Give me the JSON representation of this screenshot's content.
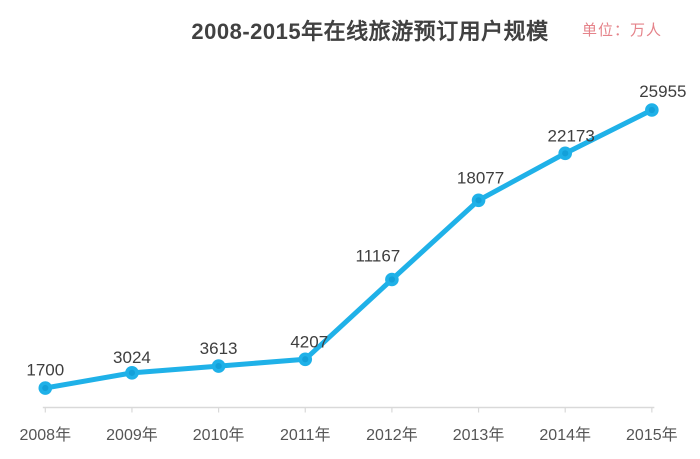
{
  "header": {
    "title": "2008-2015年在线旅游预订用户规模",
    "unit_label": "单位：万人"
  },
  "chart_data": {
    "type": "line",
    "title": "2008-2015年在线旅游预订用户规模",
    "unit": "万人",
    "series_name": "在线旅游预订用户规模",
    "categories": [
      "2008年",
      "2009年",
      "2010年",
      "2011年",
      "2012年",
      "2013年",
      "2014年",
      "2015年"
    ],
    "values": [
      1700,
      3024,
      3613,
      4207,
      11167,
      18077,
      22173,
      25955
    ],
    "ylim": [
      0,
      26000
    ],
    "grid": false,
    "legend": "none",
    "data_labels": true,
    "colors": {
      "line": "#1fb1e8",
      "marker": "#1fb1e8",
      "marker_core": "#13a0d9",
      "axis": "#d9d9d9",
      "value_label": "#3e3e3e",
      "tick_label": "#555555",
      "title": "#414141",
      "unit": "#e5838a"
    }
  }
}
